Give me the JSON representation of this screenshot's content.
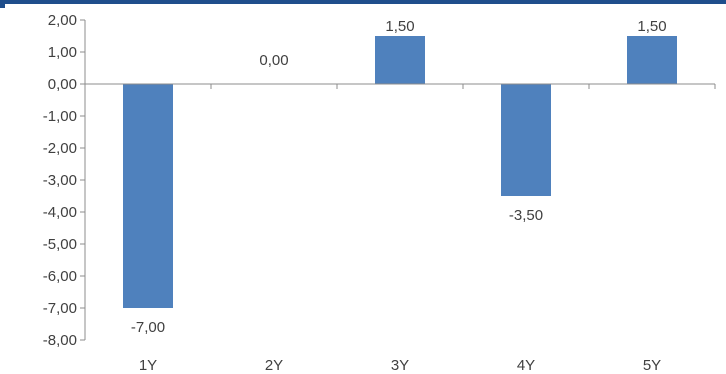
{
  "chart_data": {
    "type": "bar",
    "categories": [
      "1Y",
      "2Y",
      "3Y",
      "4Y",
      "5Y"
    ],
    "values": [
      -7.0,
      0.0,
      1.5,
      -3.5,
      1.5
    ],
    "data_labels": [
      "-7,00",
      "0,00",
      "1,50",
      "-3,50",
      "1,50"
    ],
    "y_ticks": [
      2,
      1,
      0,
      -1,
      -2,
      -3,
      -4,
      -5,
      -6,
      -7,
      -8
    ],
    "y_tick_labels": [
      "2,00",
      "1,00",
      "0,00",
      "-1,00",
      "-2,00",
      "-3,00",
      "-4,00",
      "-5,00",
      "-6,00",
      "-7,00",
      "-8,00"
    ],
    "ylim": [
      -8,
      2
    ],
    "title": "",
    "xlabel": "",
    "ylabel": "",
    "grid": false,
    "legend": "none",
    "bar_color": "#4f81bd",
    "axis_color": "#8c8c8c",
    "text_color": "#404040",
    "frame_color": "#1f4e8c"
  }
}
